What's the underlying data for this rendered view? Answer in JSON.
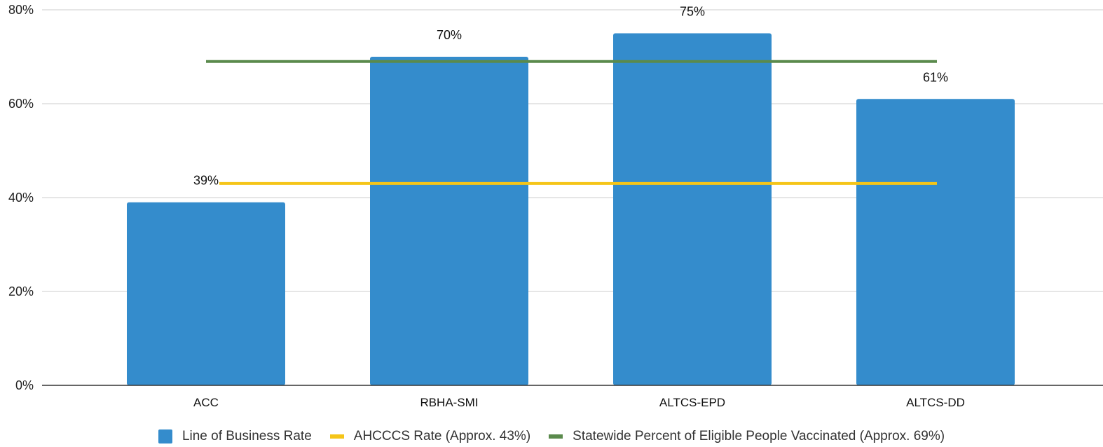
{
  "chart_data": {
    "type": "bar",
    "categories": [
      "ACC",
      "RBHA-SMI",
      "ALTCS-EPD",
      "ALTCS-DD"
    ],
    "series": [
      {
        "name": "Line of Business Rate",
        "kind": "bar",
        "color": "#348ccc",
        "values": [
          39,
          70,
          75,
          61
        ],
        "data_labels": [
          "39%",
          "70%",
          "75%",
          "61%"
        ]
      },
      {
        "name": "AHCCCS Rate (Approx. 43%)",
        "kind": "reference-line",
        "color": "#f5c518",
        "value": 43
      },
      {
        "name": "Statewide Percent of Eligible People Vaccinated (Approx. 69%)",
        "kind": "reference-line",
        "color": "#5a8a4c",
        "value": 69
      }
    ],
    "ylim": [
      0,
      80
    ],
    "y_ticks": [
      0,
      20,
      40,
      60,
      80
    ],
    "y_tick_labels": [
      "0%",
      "20%",
      "40%",
      "60%",
      "80%"
    ],
    "grid": true,
    "legend_position": "bottom",
    "title": "",
    "xlabel": "",
    "ylabel": ""
  }
}
